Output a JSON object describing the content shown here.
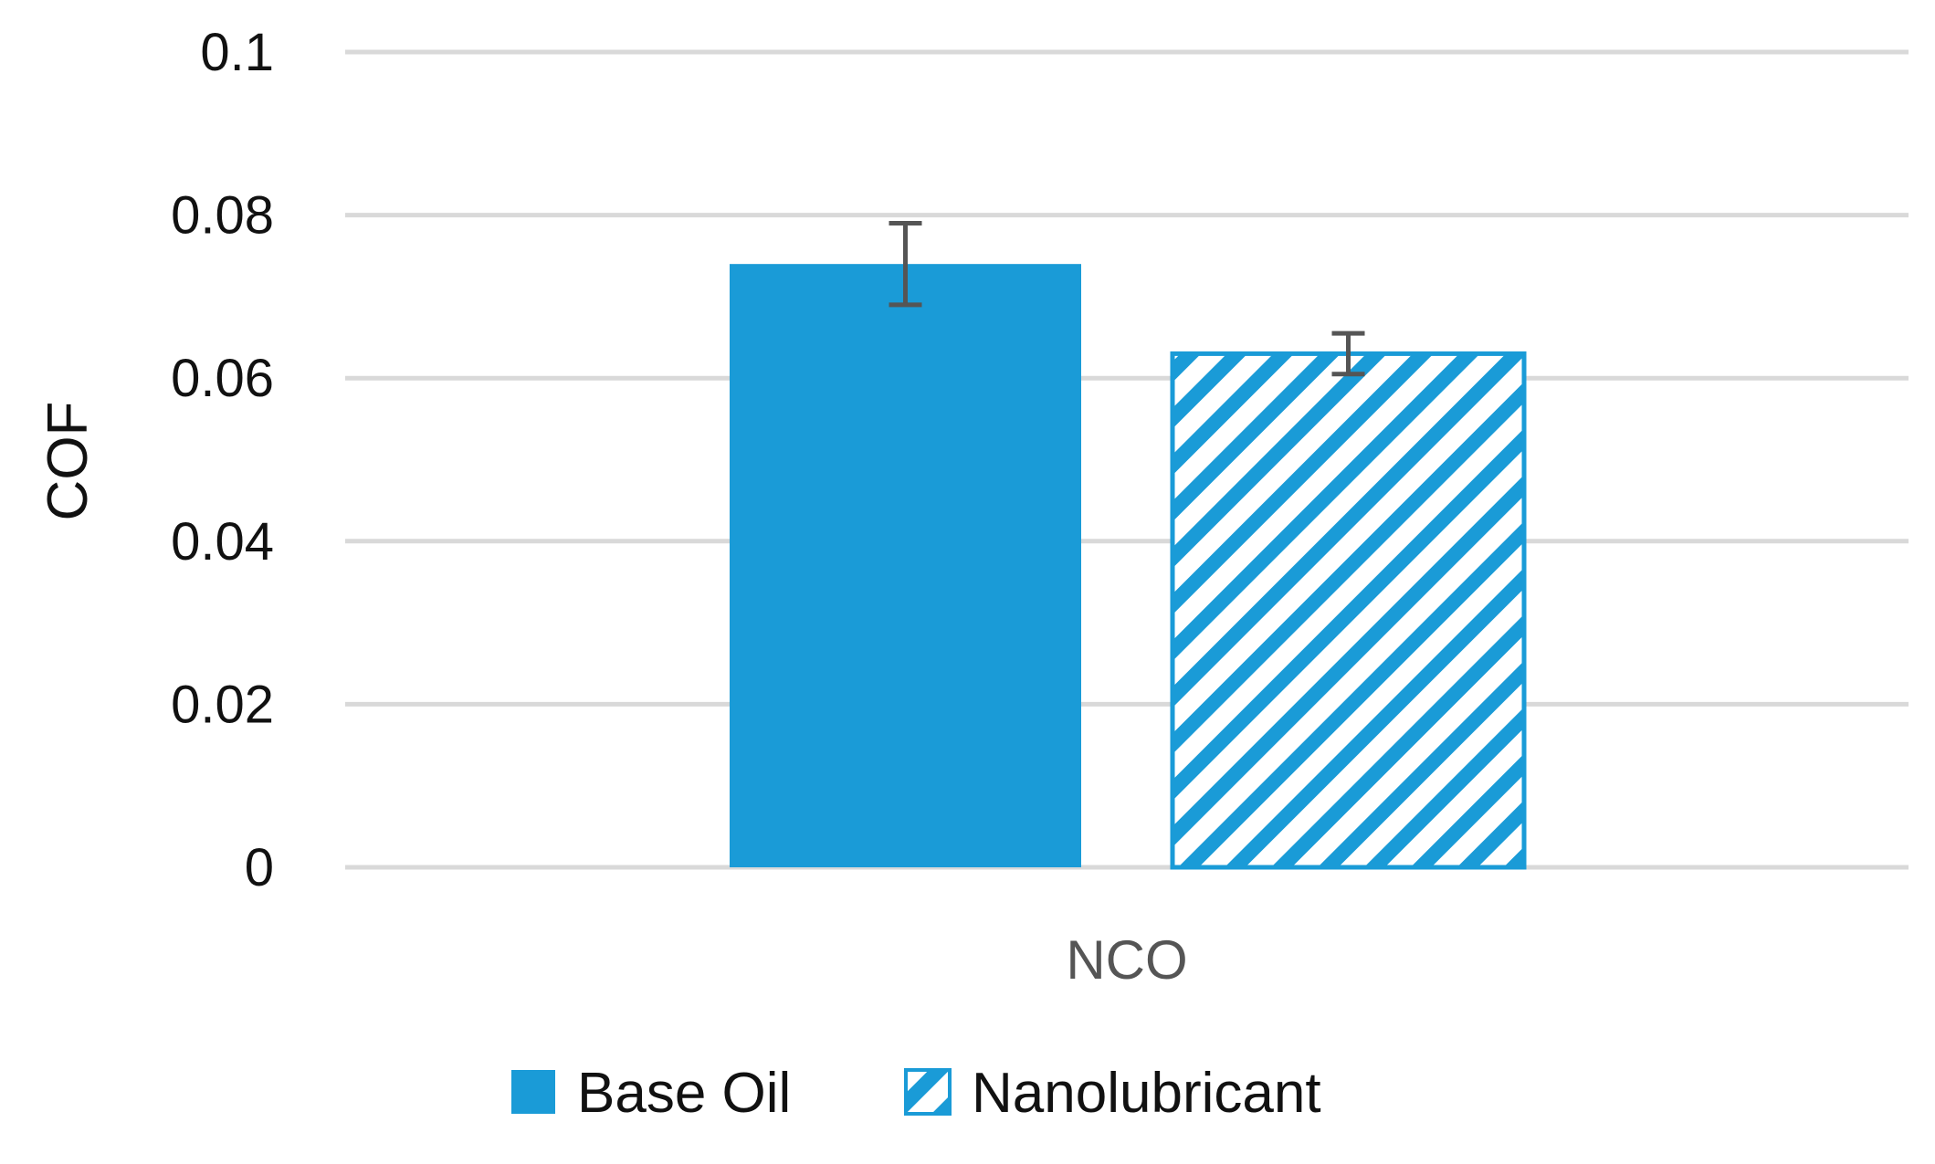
{
  "chart_data": {
    "type": "bar",
    "title": "",
    "xlabel": "",
    "ylabel": "COF",
    "categories": [
      "NCO"
    ],
    "ylim": [
      0,
      0.1
    ],
    "yticks": [
      0,
      0.02,
      0.04,
      0.06,
      0.08,
      0.1
    ],
    "ytick_labels": [
      "0",
      "0.02",
      "0.04",
      "0.06",
      "0.08",
      "0.1"
    ],
    "grid": true,
    "legend_position": "bottom",
    "series": [
      {
        "name": "Base Oil",
        "values": [
          0.074
        ],
        "error": [
          0.005
        ],
        "fill": "solid",
        "color": "#1a9bd7"
      },
      {
        "name": "Nanolubricant",
        "values": [
          0.063
        ],
        "error": [
          0.0025
        ],
        "fill": "diagonal-hatch",
        "color": "#1a9bd7"
      }
    ]
  }
}
